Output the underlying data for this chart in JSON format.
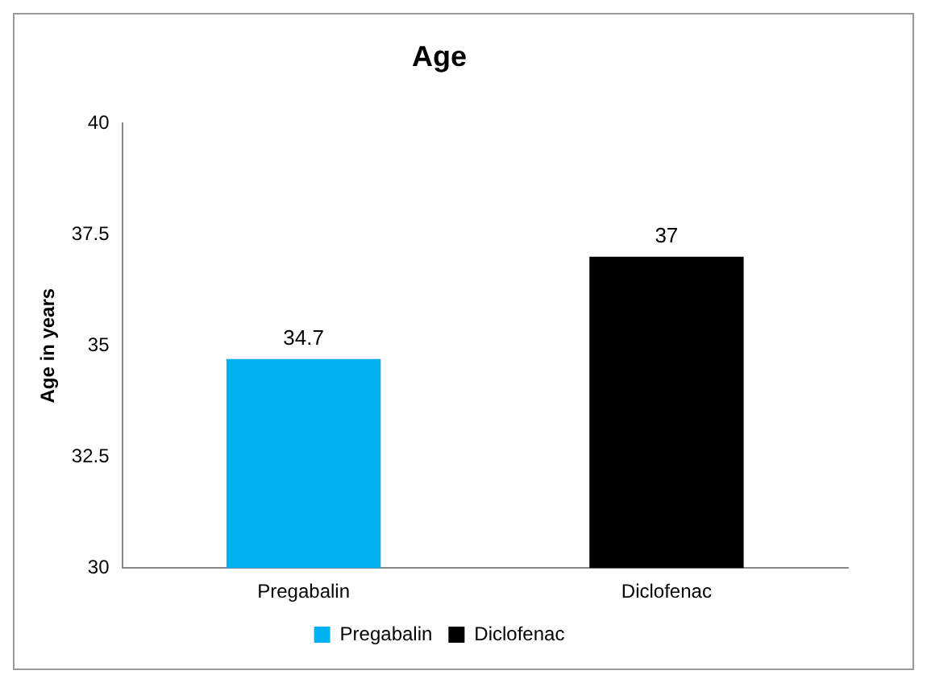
{
  "chart_data": {
    "type": "bar",
    "title": "Age",
    "ylabel": "Age in years",
    "categories": [
      "Pregabalin",
      "Diclofenac"
    ],
    "series": [
      {
        "name": "Pregabalin",
        "color": "#00b0f0",
        "values": [
          34.7,
          null
        ]
      },
      {
        "name": "Diclofenac",
        "color": "#000000",
        "values": [
          null,
          37
        ]
      }
    ],
    "ylim": [
      30,
      40
    ],
    "yticks": [
      30,
      32.5,
      35,
      37.5,
      40
    ],
    "grid": false,
    "legend": "bottom",
    "data_labels": true
  }
}
